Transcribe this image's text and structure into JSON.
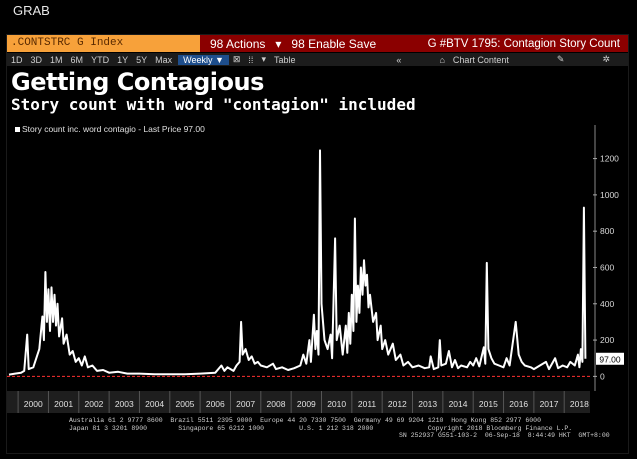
{
  "window": {
    "title": "GRAB"
  },
  "topbar": {
    "ticker": ".CONTSTRC G Index",
    "actions": "98 Actions",
    "enable_save": "98 Enable Save",
    "chart_title": "G #BTV 1795: Contagion Story Count"
  },
  "toolbar": {
    "periods": [
      "1D",
      "3D",
      "1M",
      "6M",
      "YTD",
      "1Y",
      "5Y",
      "Max"
    ],
    "frequency": "Weekly ▼",
    "table": "Table",
    "chart_content": "Chart Content"
  },
  "colors": {
    "line": "#ffffff",
    "baseline": "#ff3030",
    "ticker_bg": "#f7a13a",
    "bar_bg": "#8b0000"
  },
  "chart_data": {
    "type": "line",
    "title": "Getting Contagious",
    "subtitle": "Story count with word \"contagion\" included",
    "legend": "Story count inc. word contagio - Last Price 97.00",
    "last_price_label": "97.00",
    "last_price": 97,
    "x_ticks": [
      "2000",
      "2001",
      "2002",
      "2003",
      "2004",
      "2005",
      "2006",
      "2007",
      "2008",
      "2009",
      "2010",
      "2011",
      "2012",
      "2013",
      "2014",
      "2015",
      "2016",
      "2017",
      "2018"
    ],
    "xlim": [
      1999.7,
      2018.85
    ],
    "y_ticks": [
      0,
      200,
      400,
      600,
      800,
      1000,
      1200
    ],
    "ylim": [
      -20,
      1330
    ],
    "legend_position": "top-left",
    "grid": false,
    "points": [
      [
        1999.7,
        10
      ],
      [
        1999.9,
        15
      ],
      [
        2000.1,
        20
      ],
      [
        2000.2,
        30
      ],
      [
        2000.3,
        230
      ],
      [
        2000.35,
        40
      ],
      [
        2000.5,
        50
      ],
      [
        2000.7,
        150
      ],
      [
        2000.8,
        330
      ],
      [
        2000.85,
        200
      ],
      [
        2000.9,
        575
      ],
      [
        2000.95,
        300
      ],
      [
        2001.0,
        480
      ],
      [
        2001.05,
        250
      ],
      [
        2001.1,
        490
      ],
      [
        2001.15,
        300
      ],
      [
        2001.2,
        450
      ],
      [
        2001.25,
        280
      ],
      [
        2001.3,
        400
      ],
      [
        2001.35,
        220
      ],
      [
        2001.45,
        320
      ],
      [
        2001.5,
        180
      ],
      [
        2001.6,
        230
      ],
      [
        2001.7,
        120
      ],
      [
        2001.8,
        140
      ],
      [
        2001.9,
        80
      ],
      [
        2002.0,
        100
      ],
      [
        2002.1,
        60
      ],
      [
        2002.2,
        110
      ],
      [
        2002.3,
        50
      ],
      [
        2002.45,
        60
      ],
      [
        2002.6,
        30
      ],
      [
        2002.8,
        35
      ],
      [
        2003.0,
        20
      ],
      [
        2003.3,
        25
      ],
      [
        2003.6,
        15
      ],
      [
        2004.0,
        15
      ],
      [
        2004.5,
        12
      ],
      [
        2005.0,
        12
      ],
      [
        2005.5,
        12
      ],
      [
        2006.0,
        15
      ],
      [
        2006.5,
        20
      ],
      [
        2006.7,
        60
      ],
      [
        2006.8,
        30
      ],
      [
        2006.9,
        50
      ],
      [
        2007.0,
        40
      ],
      [
        2007.1,
        30
      ],
      [
        2007.2,
        60
      ],
      [
        2007.3,
        80
      ],
      [
        2007.35,
        300
      ],
      [
        2007.4,
        120
      ],
      [
        2007.5,
        150
      ],
      [
        2007.6,
        90
      ],
      [
        2007.7,
        110
      ],
      [
        2007.8,
        70
      ],
      [
        2007.9,
        80
      ],
      [
        2008.0,
        60
      ],
      [
        2008.2,
        50
      ],
      [
        2008.4,
        70
      ],
      [
        2008.5,
        40
      ],
      [
        2008.7,
        50
      ],
      [
        2008.9,
        35
      ],
      [
        2009.1,
        45
      ],
      [
        2009.3,
        60
      ],
      [
        2009.4,
        120
      ],
      [
        2009.5,
        70
      ],
      [
        2009.6,
        200
      ],
      [
        2009.65,
        80
      ],
      [
        2009.75,
        340
      ],
      [
        2009.8,
        150
      ],
      [
        2009.85,
        250
      ],
      [
        2009.9,
        120
      ],
      [
        2009.95,
        1245
      ],
      [
        2010.0,
        400
      ],
      [
        2010.05,
        300
      ],
      [
        2010.1,
        200
      ],
      [
        2010.2,
        150
      ],
      [
        2010.3,
        230
      ],
      [
        2010.35,
        100
      ],
      [
        2010.45,
        760
      ],
      [
        2010.5,
        200
      ],
      [
        2010.6,
        280
      ],
      [
        2010.7,
        120
      ],
      [
        2010.8,
        280
      ],
      [
        2010.85,
        130
      ],
      [
        2010.9,
        350
      ],
      [
        2010.95,
        180
      ],
      [
        2011.0,
        450
      ],
      [
        2011.05,
        250
      ],
      [
        2011.1,
        870
      ],
      [
        2011.15,
        300
      ],
      [
        2011.2,
        500
      ],
      [
        2011.25,
        350
      ],
      [
        2011.3,
        600
      ],
      [
        2011.35,
        450
      ],
      [
        2011.4,
        640
      ],
      [
        2011.45,
        500
      ],
      [
        2011.5,
        560
      ],
      [
        2011.55,
        380
      ],
      [
        2011.6,
        450
      ],
      [
        2011.7,
        300
      ],
      [
        2011.8,
        350
      ],
      [
        2011.85,
        200
      ],
      [
        2011.95,
        280
      ],
      [
        2012.0,
        150
      ],
      [
        2012.1,
        200
      ],
      [
        2012.2,
        120
      ],
      [
        2012.35,
        180
      ],
      [
        2012.45,
        90
      ],
      [
        2012.6,
        120
      ],
      [
        2012.7,
        60
      ],
      [
        2012.85,
        80
      ],
      [
        2013.0,
        50
      ],
      [
        2013.2,
        60
      ],
      [
        2013.4,
        45
      ],
      [
        2013.55,
        50
      ],
      [
        2013.6,
        110
      ],
      [
        2013.7,
        40
      ],
      [
        2013.85,
        50
      ],
      [
        2013.9,
        200
      ],
      [
        2013.95,
        60
      ],
      [
        2014.1,
        70
      ],
      [
        2014.2,
        140
      ],
      [
        2014.3,
        50
      ],
      [
        2014.4,
        90
      ],
      [
        2014.5,
        45
      ],
      [
        2014.6,
        60
      ],
      [
        2014.8,
        50
      ],
      [
        2014.9,
        80
      ],
      [
        2015.0,
        60
      ],
      [
        2015.1,
        100
      ],
      [
        2015.2,
        55
      ],
      [
        2015.35,
        160
      ],
      [
        2015.4,
        70
      ],
      [
        2015.45,
        625
      ],
      [
        2015.5,
        150
      ],
      [
        2015.6,
        100
      ],
      [
        2015.7,
        70
      ],
      [
        2015.85,
        60
      ],
      [
        2016.0,
        50
      ],
      [
        2016.1,
        100
      ],
      [
        2016.2,
        60
      ],
      [
        2016.4,
        300
      ],
      [
        2016.5,
        120
      ],
      [
        2016.6,
        80
      ],
      [
        2016.7,
        60
      ],
      [
        2016.9,
        50
      ],
      [
        2017.0,
        40
      ],
      [
        2017.2,
        60
      ],
      [
        2017.4,
        80
      ],
      [
        2017.5,
        40
      ],
      [
        2017.7,
        100
      ],
      [
        2017.8,
        45
      ],
      [
        2017.95,
        60
      ],
      [
        2018.1,
        50
      ],
      [
        2018.2,
        80
      ],
      [
        2018.35,
        60
      ],
      [
        2018.45,
        120
      ],
      [
        2018.5,
        50
      ],
      [
        2018.55,
        150
      ],
      [
        2018.6,
        80
      ],
      [
        2018.65,
        930
      ],
      [
        2018.7,
        97
      ]
    ]
  },
  "footer": {
    "line1": "Australia 61 2 9777 8600  Brazil 5511 2395 9000  Europe 44 20 7330 7500  Germany 49 69 9204 1210  Hong Kong 852 2977 6000",
    "line2": "Japan 81 3 3201 8900        Singapore 65 6212 1000         U.S. 1 212 318 2000              Copyright 2018 Bloomberg Finance L.P.",
    "line3": "SN 252937 G551-103-2  06-Sep-18  8:44:49 HKT  GMT+8:00"
  }
}
